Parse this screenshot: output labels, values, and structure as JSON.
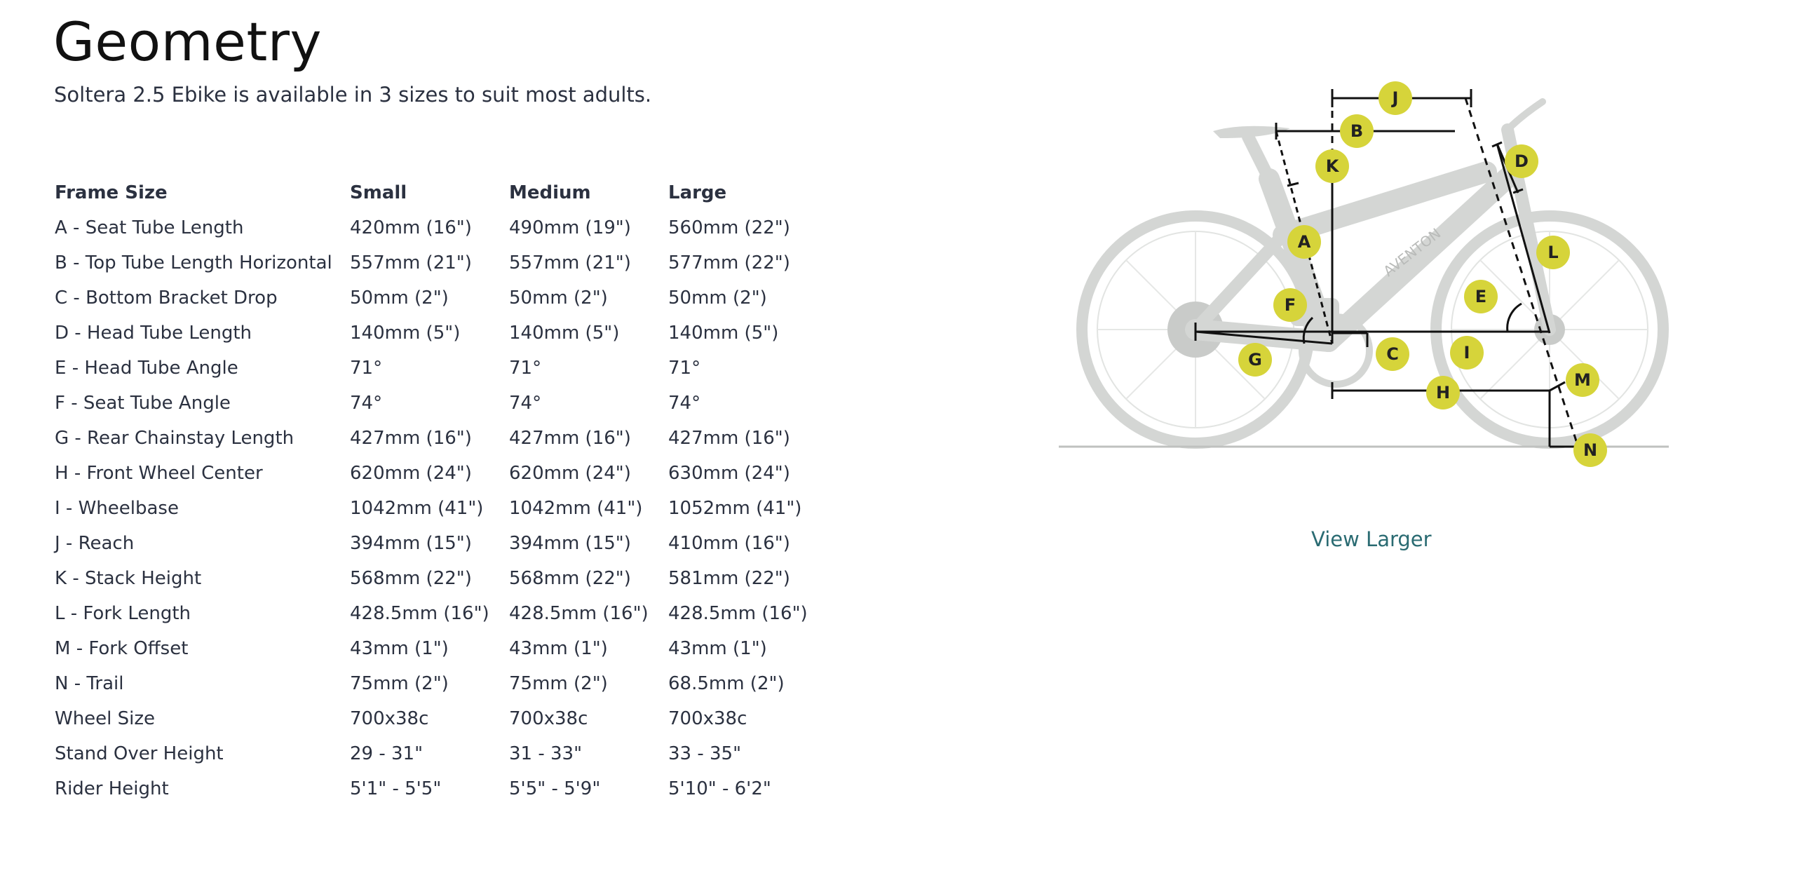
{
  "title": "Geometry",
  "subtitle": "Soltera 2.5 Ebike is available in 3 sizes to suit most adults.",
  "table": {
    "headers": [
      "Frame Size",
      "Small",
      "Medium",
      "Large"
    ],
    "rows": [
      [
        "A - Seat Tube Length",
        "420mm (16\")",
        "490mm (19\")",
        "560mm (22\")"
      ],
      [
        "B - Top Tube Length Horizontal",
        "557mm (21\")",
        "557mm (21\")",
        "577mm (22\")"
      ],
      [
        "C - Bottom Bracket Drop",
        "50mm (2\")",
        "50mm (2\")",
        "50mm (2\")"
      ],
      [
        "D - Head Tube Length",
        "140mm (5\")",
        "140mm (5\")",
        "140mm (5\")"
      ],
      [
        "E - Head Tube Angle",
        "71°",
        "71°",
        "71°"
      ],
      [
        "F - Seat Tube Angle",
        "74°",
        "74°",
        "74°"
      ],
      [
        "G - Rear Chainstay Length",
        "427mm (16\")",
        "427mm (16\")",
        "427mm (16\")"
      ],
      [
        "H - Front Wheel Center",
        "620mm (24\")",
        "620mm (24\")",
        "630mm (24\")"
      ],
      [
        "I - Wheelbase",
        "1042mm (41\")",
        "1042mm (41\")",
        "1052mm (41\")"
      ],
      [
        "J - Reach",
        "394mm (15\")",
        "394mm (15\")",
        "410mm (16\")"
      ],
      [
        "K - Stack Height",
        "568mm (22\")",
        "568mm (22\")",
        "581mm (22\")"
      ],
      [
        "L - Fork Length",
        "428.5mm (16\")",
        "428.5mm (16\")",
        "428.5mm (16\")"
      ],
      [
        "M - Fork Offset",
        "43mm (1\")",
        "43mm (1\")",
        "43mm (1\")"
      ],
      [
        "N - Trail",
        "75mm (2\")",
        "75mm (2\")",
        "68.5mm (2\")"
      ],
      [
        "Wheel Size",
        "700x38c",
        "700x38c",
        "700x38c"
      ],
      [
        "Stand Over Height",
        "29 - 31\"",
        "31 - 33\"",
        "33 - 35\""
      ],
      [
        "Rider Height",
        "5'1\" - 5'5\"",
        "5'5\" - 5'9\"",
        "5'10\" - 6'2\""
      ]
    ]
  },
  "diagram": {
    "frame_brand": "AVENTON",
    "labels": [
      "A",
      "B",
      "C",
      "D",
      "E",
      "F",
      "G",
      "H",
      "I",
      "J",
      "K",
      "L",
      "M",
      "N"
    ],
    "label_color": "#d6d43a",
    "bike_color": "#d4d6d4",
    "line_color": "#111111"
  },
  "view_larger_label": "View Larger",
  "colors": {
    "link": "#2a6b72",
    "text": "#2b3140",
    "heading": "#111111"
  }
}
